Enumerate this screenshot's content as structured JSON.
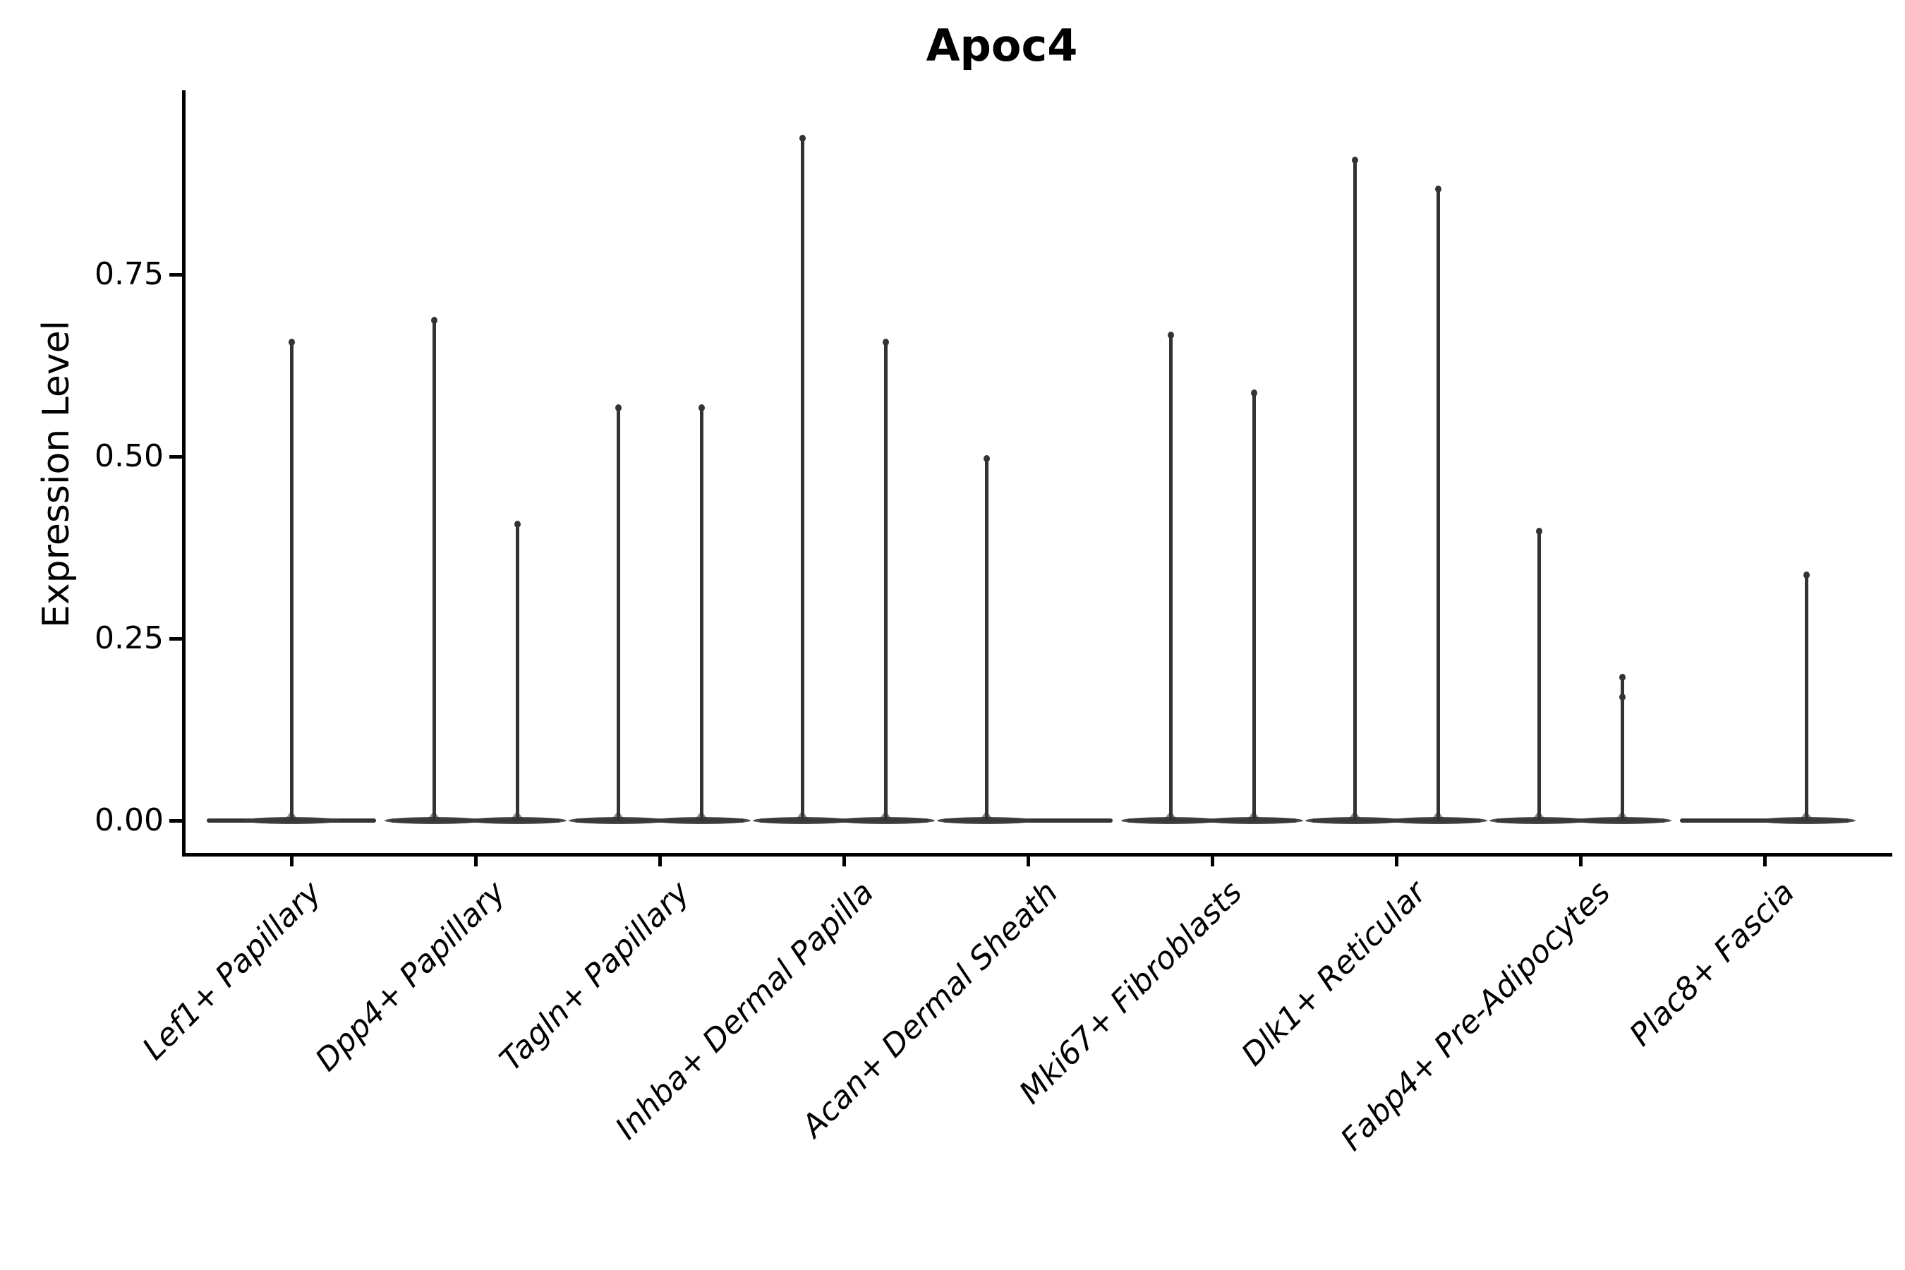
{
  "chart_data": {
    "type": "violin",
    "title": "Apoc4",
    "ylabel": "Expression Level",
    "xlabel": "",
    "grid": false,
    "legend": "none",
    "ylim": [
      0,
      1.01
    ],
    "y_ticks": [
      {
        "value": 0.0,
        "label": "0.00"
      },
      {
        "value": 0.25,
        "label": "0.25"
      },
      {
        "value": 0.5,
        "label": "0.50"
      },
      {
        "value": 0.75,
        "label": "0.75"
      }
    ],
    "categories": [
      "Lef1+ Papillary",
      "Dpp4+ Papillary",
      "Tagln+ Papillary",
      "Inhba+ Dermal Papilla",
      "Acan+ Dermal Sheath",
      "Mki67+ Fibroblasts",
      "Dlk1+ Reticular",
      "Fabp4+ Pre-Adipocytes",
      "Plac8+ Fascia"
    ],
    "description": "Violin plot of Apoc4 expression per fibroblast cluster; each violin is collapsed to a flat base at 0 with narrow spikes reaching the maximum expression of rare positive cells.",
    "groups": [
      {
        "category": "Lef1+ Papillary",
        "spikes": [
          {
            "slot": "center",
            "max": 0.66
          }
        ]
      },
      {
        "category": "Dpp4+ Papillary",
        "spikes": [
          {
            "slot": "left",
            "max": 0.69
          },
          {
            "slot": "right",
            "max": 0.41
          }
        ]
      },
      {
        "category": "Tagln+ Papillary",
        "spikes": [
          {
            "slot": "left",
            "max": 0.57
          },
          {
            "slot": "right",
            "max": 0.57
          }
        ]
      },
      {
        "category": "Inhba+ Dermal Papilla",
        "spikes": [
          {
            "slot": "left",
            "max": 0.94
          },
          {
            "slot": "right",
            "max": 0.66
          }
        ]
      },
      {
        "category": "Acan+ Dermal Sheath",
        "spikes": [
          {
            "slot": "left",
            "max": 0.5
          }
        ]
      },
      {
        "category": "Mki67+ Fibroblasts",
        "spikes": [
          {
            "slot": "left",
            "max": 0.67
          },
          {
            "slot": "right",
            "max": 0.59
          }
        ]
      },
      {
        "category": "Dlk1+ Reticular",
        "spikes": [
          {
            "slot": "left",
            "max": 0.91
          },
          {
            "slot": "right",
            "max": 0.87
          }
        ]
      },
      {
        "category": "Fabp4+ Pre-Adipocytes",
        "spikes": [
          {
            "slot": "left",
            "max": 0.4
          },
          {
            "slot": "right",
            "max": 0.2,
            "secondary_knob": 0.17
          }
        ]
      },
      {
        "category": "Plac8+ Fascia",
        "spikes": [
          {
            "slot": "right",
            "max": 0.34
          }
        ]
      }
    ],
    "colors": {
      "violin_line": "#333333",
      "axis": "#000000",
      "text": "#000000",
      "background": "#ffffff"
    }
  }
}
